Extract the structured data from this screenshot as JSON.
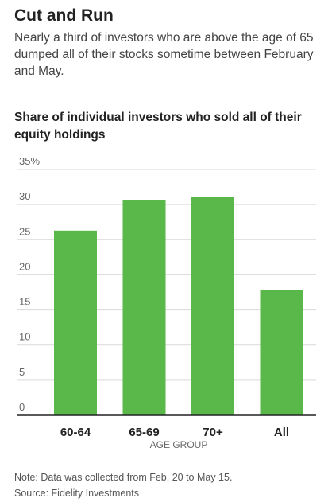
{
  "header": {
    "title": "Cut and Run",
    "subtitle": "Nearly a third of investors who are above the age of 65 dumped all of their stocks sometime between February and May."
  },
  "chart_data": {
    "type": "bar",
    "title": "Share of individual investors who sold all of their equity holdings",
    "xlabel": "AGE GROUP",
    "ylabel": "",
    "categories": [
      "60-64",
      "65-69",
      "70+",
      "All"
    ],
    "values": [
      26.3,
      30.6,
      31.1,
      17.8
    ],
    "ylim": [
      0,
      35
    ],
    "yticks": [
      0,
      5,
      10,
      15,
      20,
      25,
      30,
      35
    ],
    "ytick_labels": [
      "0",
      "5",
      "10",
      "15",
      "20",
      "25",
      "30",
      "35%"
    ],
    "grid": true,
    "bar_color": "#5ab84a",
    "grid_color": "#d9d9d9",
    "axis_color": "#222222"
  },
  "footer": {
    "note": "Note: Data was collected from Feb. 20 to May 15.",
    "source": "Source: Fidelity Investments"
  }
}
